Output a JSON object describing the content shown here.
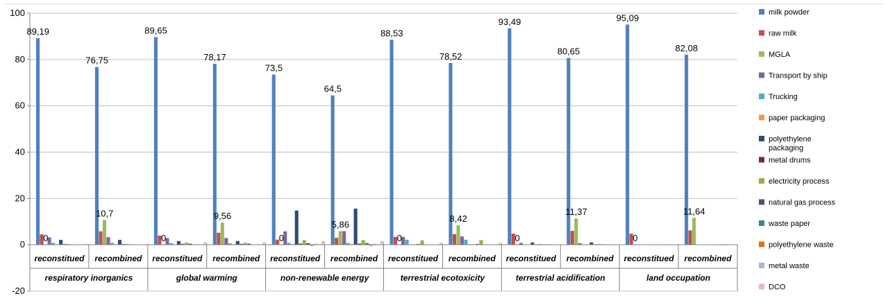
{
  "chart_data": {
    "type": "bar",
    "ylim": [
      -20,
      100
    ],
    "yticks": [
      -20,
      0,
      20,
      40,
      60,
      80,
      100
    ],
    "grid": true,
    "legend_position": "right",
    "groups": [
      {
        "label": "respiratory inorganics",
        "subs": [
          "reconstitued",
          "recombined"
        ]
      },
      {
        "label": "global warming",
        "subs": [
          "reconstitued",
          "recombined"
        ]
      },
      {
        "label": "non-renewable energy",
        "subs": [
          "reconstitued",
          "recombined"
        ]
      },
      {
        "label": "terrestrial ecotoxicity",
        "subs": [
          "reconstitued",
          "recombined"
        ]
      },
      {
        "label": "terrestrial acidification",
        "subs": [
          "reconstitued",
          "recombined"
        ]
      },
      {
        "label": "land occupation",
        "subs": [
          "reconstitued",
          "recombined"
        ]
      }
    ],
    "categories": [
      "respiratory inorganics / reconstitued",
      "respiratory inorganics / recombined",
      "global warming / reconstitued",
      "global warming / recombined",
      "non-renewable energy / reconstitued",
      "non-renewable energy / recombined",
      "terrestrial ecotoxicity / reconstitued",
      "terrestrial ecotoxicity / recombined",
      "terrestrial acidification / reconstitued",
      "terrestrial acidification / recombined",
      "land occupation / reconstitued",
      "land occupation / recombined"
    ],
    "series": [
      {
        "name": "milk powder",
        "color": "#4F81BD",
        "values": [
          89.19,
          76.75,
          89.65,
          78.17,
          73.5,
          64.5,
          88.53,
          78.52,
          93.49,
          80.65,
          95.09,
          82.08
        ],
        "labels": [
          "89,19",
          "76,75",
          "89,65",
          "78,17",
          "73,5",
          "64,5",
          "88,53",
          "78,52",
          "93,49",
          "80,65",
          "95,09",
          "82,08"
        ]
      },
      {
        "name": "raw milk",
        "color": "#C0504D",
        "values": [
          4.5,
          5.8,
          4.0,
          5.2,
          2.2,
          3.0,
          3.4,
          4.6,
          4.8,
          6.0,
          4.8,
          6.2
        ]
      },
      {
        "name": "MGLA",
        "color": "#9BBB59",
        "values": [
          0,
          10.7,
          0,
          9.56,
          0,
          5.86,
          0,
          8.42,
          0,
          11.37,
          0,
          11.64
        ],
        "labels": [
          "0",
          "10,7",
          "0",
          "9,56",
          "0",
          "5,86",
          "0",
          "8,42",
          "0",
          "11,37",
          "0",
          "11,64"
        ]
      },
      {
        "name": "Transport by ship",
        "color": "#8064A2",
        "values": [
          3.2,
          3.3,
          2.9,
          2.9,
          5.8,
          5.9,
          3.4,
          3.6,
          0.8,
          0.7,
          0.1,
          0.1
        ]
      },
      {
        "name": "Trucking",
        "color": "#4BACC6",
        "values": [
          0.8,
          0.8,
          0.7,
          0.6,
          0.8,
          0.8,
          2.2,
          2.2,
          0.2,
          0.2,
          0.1,
          0.1
        ]
      },
      {
        "name": "paper packaging",
        "color": "#F79646",
        "values": [
          0.2,
          0.2,
          0.2,
          0.2,
          0.3,
          0.3,
          0.2,
          0.2,
          0.1,
          0.1,
          0.1,
          0.1
        ]
      },
      {
        "name": "polyethylene packaging",
        "color": "#2C4D75",
        "values": [
          2.1,
          2.1,
          1.6,
          1.6,
          14.8,
          15.6,
          0.2,
          0.2,
          1.0,
          1.0,
          0.1,
          0.1
        ]
      },
      {
        "name": "metal drums",
        "color": "#772C2A",
        "values": [
          0.3,
          0.3,
          0.4,
          0.4,
          0.5,
          0.5,
          0.3,
          0.3,
          0.2,
          0.2,
          0.1,
          0.1
        ]
      },
      {
        "name": "electricity process",
        "color": "#93B24B",
        "values": [
          0.3,
          0.3,
          0.9,
          0.9,
          2.0,
          2.0,
          1.9,
          2.0,
          0.3,
          0.3,
          0.1,
          0.1
        ]
      },
      {
        "name": "natural gas process",
        "color": "#604A7B",
        "values": [
          0.2,
          0.2,
          0.5,
          0.5,
          0.7,
          0.7,
          0.1,
          0.1,
          0.2,
          0.2,
          0.05,
          0.05
        ]
      },
      {
        "name": "waste paper",
        "color": "#31859C",
        "values": [
          0.1,
          0.1,
          0.1,
          0.1,
          -0.4,
          -0.4,
          0.1,
          0.1,
          0.05,
          0.05,
          0.05,
          0.05
        ]
      },
      {
        "name": "polyethylene waste",
        "color": "#E46C0A",
        "values": [
          0.1,
          0.1,
          0.2,
          0.2,
          0.3,
          0.3,
          0.1,
          0.1,
          0.05,
          0.05,
          0.05,
          0.05
        ]
      },
      {
        "name": "metal waste",
        "color": "#A6B6D8",
        "values": [
          0.1,
          0.1,
          0.1,
          0.1,
          0.2,
          0.2,
          0.1,
          0.1,
          0.05,
          0.05,
          0.05,
          0.05
        ]
      },
      {
        "name": "DCO",
        "color": "#E6B9B8",
        "values": [
          0.3,
          0.3,
          1.0,
          1.0,
          1.6,
          1.6,
          0.8,
          0.8,
          0.1,
          0.1,
          0.05,
          0.05
        ]
      }
    ]
  }
}
